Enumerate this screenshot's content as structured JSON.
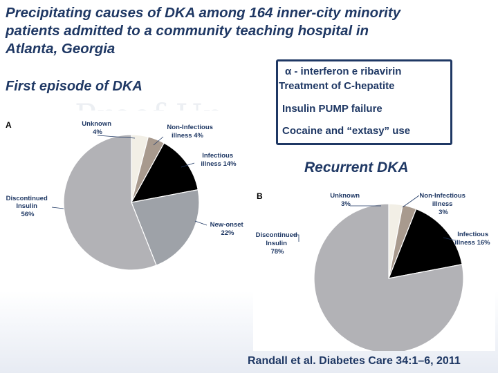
{
  "title_lines": [
    "Precipitating causes of DKA among 164 inner-city minority",
    "patients admitted to a community teaching hospital in",
    "Atlanta, Georgia"
  ],
  "first_episode_label": "First episode of DKA",
  "recurrent_label": "Recurrent DKA",
  "watermark": "Proof Up",
  "causes_box": {
    "items": [
      "α - interferon e ribavirin",
      "Treatment of C-hepatite",
      "Insulin PUMP failure",
      "Cocaine and “extasy” use"
    ]
  },
  "citation": "Randall et al. Diabetes Care 34:1–6, 2011",
  "colors": {
    "title": "#1f3864",
    "unknown": "#f2efe6",
    "non_infectious": "#a89a8e",
    "infectious": "#000000",
    "new_onset": "#9ea2a8",
    "discontinued": "#b2b2b6"
  },
  "chart_data": [
    {
      "type": "pie",
      "panel": "A",
      "slices": [
        {
          "label": "Unknown",
          "pct_text": "4%",
          "value": 4,
          "color": "#f2efe6"
        },
        {
          "label": "Non-Infectious illness",
          "pct_text": "4%",
          "value": 4,
          "color": "#a89a8e"
        },
        {
          "label": "Infectious illness",
          "pct_text": "14%",
          "value": 14,
          "color": "#000000"
        },
        {
          "label": "New-onset",
          "pct_text": "22%",
          "value": 22,
          "color": "#9ea2a8"
        },
        {
          "label": "Discontinued Insulin",
          "pct_text": "56%",
          "value": 56,
          "color": "#b2b2b6"
        }
      ]
    },
    {
      "type": "pie",
      "panel": "B",
      "slices": [
        {
          "label": "Unknown",
          "pct_text": "3%",
          "value": 3,
          "color": "#f2efe6"
        },
        {
          "label": "Non-Infectious illness",
          "pct_text": "3%",
          "value": 3,
          "color": "#a89a8e"
        },
        {
          "label": "Infectious illness",
          "pct_text": "16%",
          "value": 16,
          "color": "#000000"
        },
        {
          "label": "Discontinued Insulin",
          "pct_text": "78%",
          "value": 78,
          "color": "#b2b2b6"
        }
      ]
    }
  ]
}
